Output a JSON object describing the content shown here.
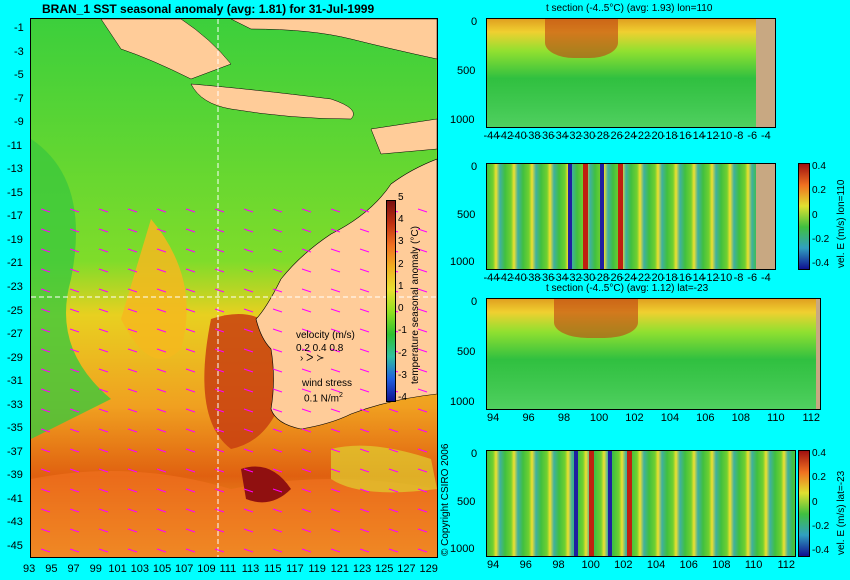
{
  "map": {
    "title": "BRAN_1  SST seasonal anomaly  (avg: 1.81)  for 31-Jul-1999",
    "lat_labels": [
      "-1",
      "-3",
      "-5",
      "-7",
      "-9",
      "-11",
      "-13",
      "-15",
      "-17",
      "-19",
      "-21",
      "-23",
      "-25",
      "-27",
      "-29",
      "-31",
      "-33",
      "-35",
      "-37",
      "-39",
      "-41",
      "-43",
      "-45"
    ],
    "lon_labels": [
      "93",
      "95",
      "97",
      "99",
      "101",
      "103",
      "105",
      "107",
      "109",
      "111",
      "113",
      "115",
      "117",
      "119",
      "121",
      "123",
      "125",
      "127",
      "129"
    ],
    "colorbar_label": "temperature seasonal anomaly (°C)",
    "colorbar_ticks": [
      "5",
      "4",
      "3",
      "2",
      "1",
      "0",
      "-1",
      "-2",
      "-3",
      "-4"
    ],
    "velocity_label": "velocity (m/s)",
    "velocity_scale": "0.2 0.4 0.8",
    "wind_label": "wind stress",
    "wind_scale": "0.1 N/m",
    "wind_superscript": "2",
    "copyright": "© Copyright CSIRO 2006"
  },
  "panels": [
    {
      "title": "t section (-4..5°C)  (avg: 1.93)  lon=110",
      "yticks": [
        "0",
        "500",
        "1000"
      ],
      "xticks": [
        "-44",
        "-42",
        "-40",
        "-38",
        "-36",
        "-34",
        "-32",
        "-30",
        "-28",
        "-26",
        "-24",
        "-22",
        "-20",
        "-18",
        "-16",
        "-14",
        "-12",
        "-10",
        "-8",
        "-6",
        "-4"
      ],
      "side_label": ""
    },
    {
      "title": "",
      "yticks": [
        "0",
        "500",
        "1000"
      ],
      "xticks": [
        "-44",
        "-42",
        "-40",
        "-38",
        "-36",
        "-34",
        "-32",
        "-30",
        "-28",
        "-26",
        "-24",
        "-22",
        "-20",
        "-18",
        "-16",
        "-14",
        "-12",
        "-10",
        "-8",
        "-6",
        "-4"
      ],
      "side_label": "vel. E (m/s) lon=110",
      "cb_ticks": [
        "0.4",
        "0.2",
        "0",
        "-0.2",
        "-0.4"
      ]
    },
    {
      "title": "t section (-4..5°C)  (avg: 1.12)  lat=-23",
      "yticks": [
        "0",
        "500",
        "1000"
      ],
      "xticks": [
        "94",
        "96",
        "98",
        "100",
        "102",
        "104",
        "106",
        "108",
        "110",
        "112"
      ],
      "side_label": ""
    },
    {
      "title": "",
      "yticks": [
        "0",
        "500",
        "1000"
      ],
      "xticks": [
        "94",
        "96",
        "98",
        "100",
        "102",
        "104",
        "106",
        "108",
        "110",
        "112"
      ],
      "side_label": "vel. E (m/s) lat=-23",
      "cb_ticks": [
        "0.4",
        "0.2",
        "0",
        "-0.2",
        "-0.4"
      ]
    }
  ],
  "colors": {
    "background": "#00ffff",
    "land": "#ffcc99",
    "section_land": "#c8a882",
    "vector": "#ff00ff"
  },
  "chart_data": [
    {
      "type": "heatmap",
      "title": "BRAN_1  SST seasonal anomaly  (avg: 1.81)  for 31-Jul-1999",
      "xlabel": "",
      "ylabel": "",
      "xlim": [
        92.5,
        130
      ],
      "ylim": [
        -45,
        0
      ],
      "colorbar_range": [
        -4,
        5
      ],
      "colorbar_label": "temperature seasonal anomaly (°C)"
    },
    {
      "type": "heatmap",
      "title": "t section (-4..5°C)  (avg: 1.93)  lon=110",
      "xlim": [
        -45,
        -3
      ],
      "ylim": [
        1050,
        0
      ],
      "land_from_x": -8
    },
    {
      "type": "heatmap",
      "title": "",
      "ylabel": "vel. E (m/s) lon=110",
      "xlim": [
        -45,
        -3
      ],
      "ylim": [
        1050,
        0
      ],
      "colorbar_range": [
        -0.5,
        0.5
      ],
      "land_from_x": -8
    },
    {
      "type": "heatmap",
      "title": "t section (-4..5°C)  (avg: 1.12)  lat=-23",
      "xlim": [
        93,
        114
      ],
      "ylim": [
        1050,
        0
      ],
      "land_from_x": 113.5
    },
    {
      "type": "heatmap",
      "title": "",
      "ylabel": "vel. E (m/s) lat=-23",
      "xlim": [
        93,
        113
      ],
      "ylim": [
        1050,
        0
      ],
      "colorbar_range": [
        -0.5,
        0.5
      ]
    }
  ]
}
